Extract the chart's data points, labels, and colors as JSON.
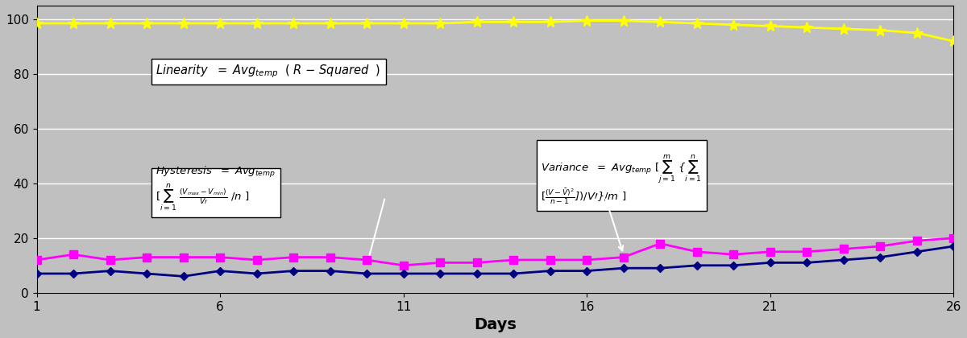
{
  "days": [
    1,
    2,
    3,
    4,
    5,
    6,
    7,
    8,
    9,
    10,
    11,
    12,
    13,
    14,
    15,
    16,
    17,
    18,
    19,
    20,
    21,
    22,
    23,
    24,
    25,
    26
  ],
  "linearity": [
    98.5,
    98.5,
    98.5,
    98.5,
    98.5,
    98.5,
    98.5,
    98.5,
    98.5,
    98.5,
    98.5,
    98.5,
    99.0,
    99.0,
    99.0,
    99.5,
    99.5,
    99.0,
    98.5,
    98.0,
    97.5,
    97.0,
    96.5,
    96.0,
    95.0,
    92.0
  ],
  "hysteresis": [
    12,
    14,
    12,
    13,
    13,
    13,
    12,
    13,
    13,
    12,
    10,
    11,
    11,
    12,
    12,
    12,
    13,
    18,
    15,
    14,
    15,
    15,
    16,
    17,
    19,
    20
  ],
  "variance": [
    7,
    7,
    8,
    7,
    6,
    8,
    7,
    8,
    8,
    7,
    7,
    7,
    7,
    7,
    8,
    8,
    9,
    9,
    10,
    10,
    11,
    11,
    12,
    13,
    15,
    17
  ],
  "linearity_color": "#FFFF00",
  "hysteresis_color": "#FF00FF",
  "variance_color": "#000080",
  "bg_color": "#C0C0C0",
  "plot_bg": "#C0C0C0",
  "xlabel": "Days",
  "ylim": [
    0,
    105
  ],
  "yticks": [
    0,
    20,
    40,
    60,
    80,
    100
  ],
  "xticks": [
    1,
    6,
    11,
    16,
    21,
    26
  ],
  "linearity_label": "Linearity  =  Avg$_{temp}$ ( R – Squared  )",
  "hysteresis_label": "Hysteresis  =  Avg$_{temp}$ [$\\sum_{i=1}^{n}$ $\\frac{(V_{max} - V_{min})}{V\\prime}$ / n ]",
  "variance_label": "Variance  =  Avg$_{temp}$ [$\\sum_{j=1}^{m}$ {$\\sum_{i=1}^{n}$ [$\\frac{(V - \\bar{V})^2}{n-1}$])/V\\prime} / m ]",
  "figsize": [
    12.0,
    4.2
  ],
  "dpi": 100
}
